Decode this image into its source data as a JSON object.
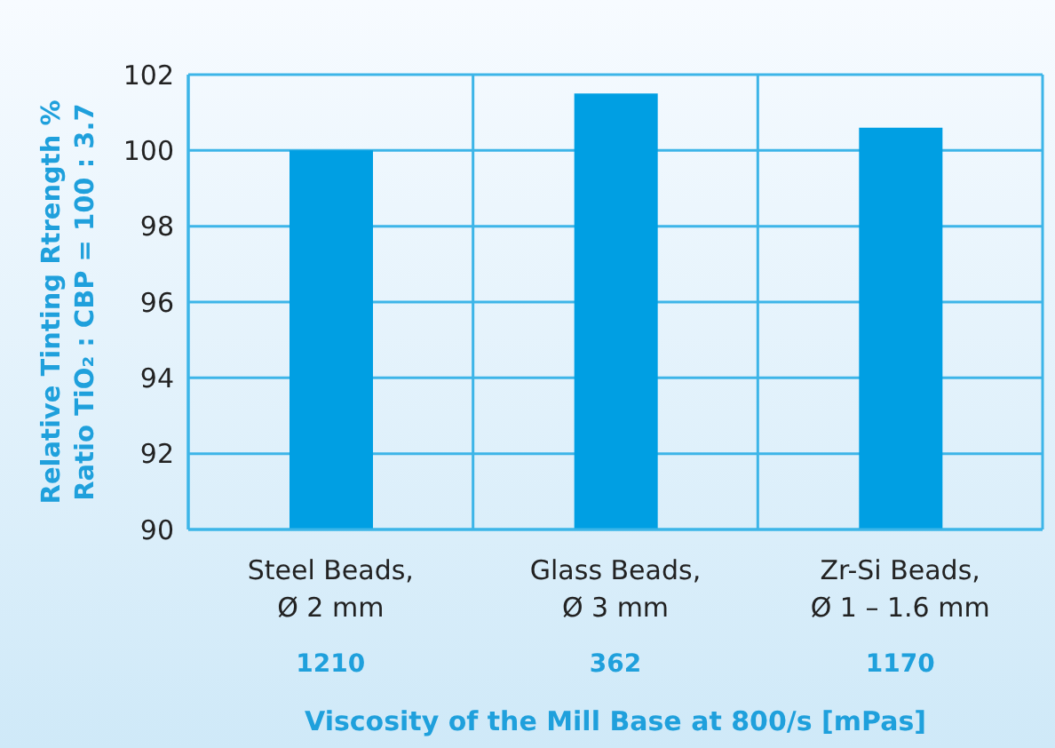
{
  "chart_data": {
    "type": "bar",
    "ylabel": "Relative Tinting Rtrength %\nRatio TiO₂ : CBP = 100 : 3.7",
    "xlabel": "Viscosity of the Mill Base at 800/s [mPas]",
    "categories": [
      "Steel Beads, Ø 2 mm",
      "Glass Beads, Ø 3 mm",
      "Zr-Si Beads, Ø 1 – 1.6 mm"
    ],
    "values": [
      100.0,
      101.5,
      100.6
    ],
    "color": "#009fe3",
    "ylim": [
      90,
      102
    ],
    "yticks": [
      90,
      92,
      94,
      96,
      98,
      100,
      102
    ],
    "grid": true,
    "legend": false,
    "annotations": [
      "1210",
      "362",
      "1170"
    ]
  }
}
